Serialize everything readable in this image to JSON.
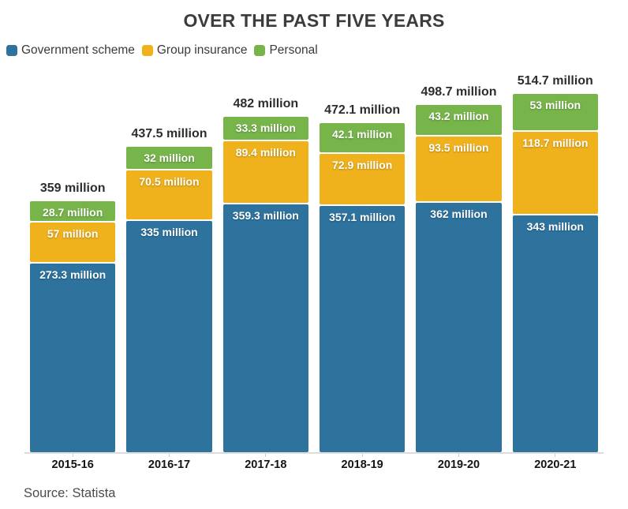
{
  "title": "OVER THE PAST FIVE YEARS",
  "source": "Source: Statista",
  "chart_data": {
    "type": "bar",
    "stacked": true,
    "unit": "million",
    "title": "OVER THE PAST FIVE YEARS",
    "xlabel": "",
    "ylabel": "",
    "y_axis_visible": false,
    "grid": false,
    "legend_position": "top-left",
    "categories": [
      "2015-16",
      "2016-17",
      "2017-18",
      "2018-19",
      "2019-20",
      "2020-21"
    ],
    "series": [
      {
        "name": "Government scheme",
        "key": "government-scheme",
        "color": "#2e739e",
        "values": [
          273.3,
          335,
          359.3,
          357.1,
          362,
          343
        ],
        "labels": [
          "273.3 million",
          "335 million",
          "359.3 million",
          "357.1 million",
          "362 million",
          "343 million"
        ]
      },
      {
        "name": "Group insurance",
        "key": "group-insurance",
        "color": "#efb21d",
        "values": [
          57,
          70.5,
          89.4,
          72.9,
          93.5,
          118.7
        ],
        "labels": [
          "57 million",
          "70.5 million",
          "89.4 million",
          "72.9 million",
          "93.5 million",
          "118.7 million"
        ]
      },
      {
        "name": "Personal",
        "key": "personal",
        "color": "#77b54b",
        "values": [
          28.7,
          32,
          33.3,
          42.1,
          43.2,
          53
        ],
        "labels": [
          "28.7 million",
          "32 million",
          "33.3 million",
          "42.1 million",
          "43.2 million",
          "53 million"
        ]
      }
    ],
    "totals": [
      359,
      437.5,
      482,
      472.1,
      498.7,
      514.7
    ],
    "total_labels": [
      "359 million",
      "437.5 million",
      "482 million",
      "472.1 million",
      "498.7 million",
      "514.7 million"
    ],
    "colors": {
      "government_scheme": "#2e739e",
      "group_insurance": "#efb21d",
      "personal": "#77b54b",
      "axis_line": "#dcdcdc",
      "title_text": "#3c3c3c",
      "source_text": "#4b4b4b"
    }
  }
}
